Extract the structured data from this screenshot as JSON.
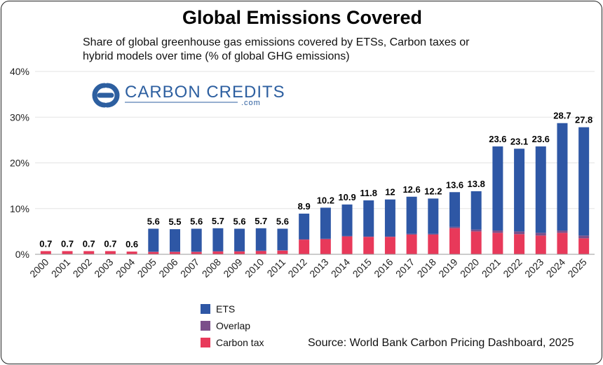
{
  "chart_data": {
    "type": "bar",
    "stacked": true,
    "title": "Global Emissions Covered",
    "subtitle_lines": [
      "Share of global greenhouse gas emissions covered by ETSs, Carbon taxes or",
      "hybrid models over time (% of global GHG emissions)"
    ],
    "categories": [
      "2000",
      "2001",
      "2002",
      "2003",
      "2004",
      "2005",
      "2006",
      "2007",
      "2008",
      "2009",
      "2010",
      "2011",
      "2012",
      "2013",
      "2014",
      "2015",
      "2016",
      "2017",
      "2018",
      "2019",
      "2020",
      "2021",
      "2022",
      "2023",
      "2024",
      "2025"
    ],
    "series": [
      {
        "name": "Carbon tax",
        "color": "#e8395a",
        "values": [
          0.7,
          0.7,
          0.7,
          0.7,
          0.6,
          0.5,
          0.5,
          0.5,
          0.6,
          0.6,
          0.7,
          0.8,
          3.2,
          3.3,
          3.9,
          3.8,
          3.8,
          4.3,
          4.3,
          5.7,
          5.0,
          4.7,
          4.4,
          4.1,
          4.7,
          3.5
        ]
      },
      {
        "name": "Overlap",
        "color": "#7b4f8a",
        "values": [
          0,
          0,
          0,
          0,
          0,
          0.1,
          0.1,
          0.1,
          0.1,
          0.1,
          0.1,
          0.1,
          0.1,
          0.1,
          0.1,
          0.1,
          0.1,
          0.2,
          0.2,
          0.3,
          0.4,
          0.5,
          0.6,
          0.6,
          0.5,
          0.6
        ]
      },
      {
        "name": "ETS",
        "color": "#2e57a5",
        "values": [
          0,
          0,
          0,
          0,
          0,
          5.0,
          4.9,
          5.0,
          5.0,
          4.9,
          4.9,
          4.7,
          5.6,
          6.8,
          6.9,
          7.9,
          8.1,
          8.1,
          7.7,
          7.6,
          8.4,
          18.4,
          18.1,
          18.9,
          23.5,
          23.7
        ]
      }
    ],
    "totals": [
      "0.7",
      "0.7",
      "0.7",
      "0.7",
      "0.6",
      "5.6",
      "5.5",
      "5.6",
      "5.7",
      "5.6",
      "5.7",
      "5.6",
      "8.9",
      "10.2",
      "10.9",
      "11.8",
      "12",
      "12.6",
      "12.2",
      "13.6",
      "13.8",
      "23.6",
      "23.1",
      "23.6",
      "28.7",
      "27.8"
    ],
    "ylim": [
      0,
      40
    ],
    "yticks": [
      "0%",
      "10%",
      "20%",
      "30%",
      "40%"
    ],
    "ytick_values": [
      0,
      10,
      20,
      30,
      40
    ],
    "grid": true,
    "legend": [
      "ETS",
      "Overlap",
      "Carbon tax"
    ],
    "legend_position": "bottom-left"
  },
  "logo": {
    "name": "CARBON CREDITS",
    "sub": ".com"
  },
  "source": "Source: World Bank Carbon Pricing Dashboard, 2025"
}
